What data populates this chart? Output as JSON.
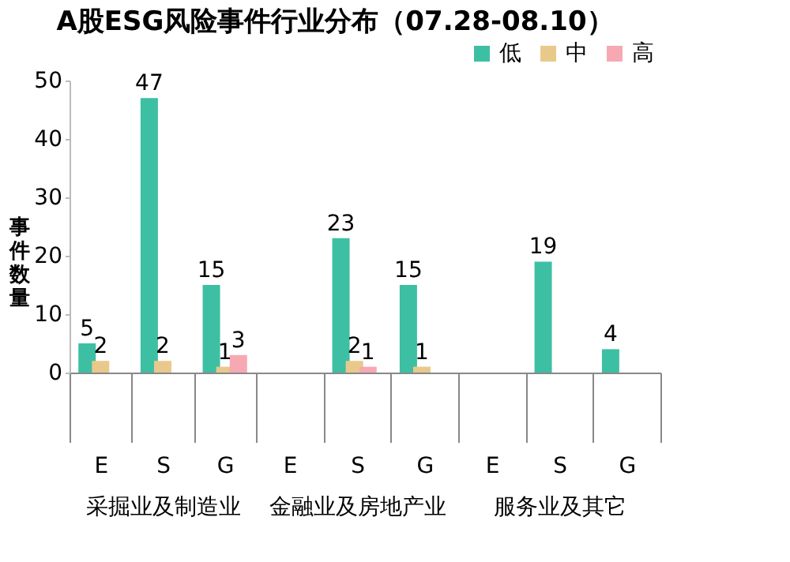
{
  "chart_data": [
    {
      "type": "bar",
      "title": "A股ESG风险事件行业分布（07.28-08.10）",
      "xlabel": "采掘业及制造业",
      "ylabel": "事件数量",
      "categories": [
        "E",
        "S",
        "G"
      ],
      "ylim": [
        0,
        50
      ],
      "yticks": [
        0,
        10,
        20,
        30,
        40,
        50
      ],
      "grid": false,
      "data_labels": true,
      "legend": "top right",
      "series": [
        {
          "name": "低",
          "color": "#3dbfa3",
          "values": [
            5,
            47,
            15
          ]
        },
        {
          "name": "中",
          "color": "#e9c98b",
          "values": [
            2,
            2,
            1
          ]
        },
        {
          "name": "高",
          "color": "#f6a9b3",
          "values": [
            null,
            null,
            3
          ]
        }
      ]
    },
    {
      "type": "bar",
      "xlabel": "金融业及房地产业",
      "categories": [
        "E",
        "S",
        "G"
      ],
      "data_labels": true,
      "tick_labels": "x",
      "legend": false,
      "series": [
        {
          "color": "#3dbfa3",
          "values": [
            null,
            23,
            15
          ]
        },
        {
          "color": "#e9c98b",
          "values": [
            null,
            2,
            1
          ]
        },
        {
          "color": "#f6a9b3",
          "values": [
            null,
            1,
            null
          ]
        }
      ]
    },
    {
      "type": "bar",
      "xlabel": "服务业及其它",
      "categories": [
        "E",
        "S",
        "G"
      ],
      "data_labels": true,
      "tick_labels": "x",
      "series": [
        {
          "color": "#3dbfa3",
          "values": [
            null,
            19,
            4
          ]
        },
        {
          "color": "#e9c98b",
          "values": [
            null,
            null,
            null
          ]
        },
        {
          "color": "#f6a9b3",
          "values": [
            null,
            null,
            null
          ]
        }
      ]
    }
  ]
}
